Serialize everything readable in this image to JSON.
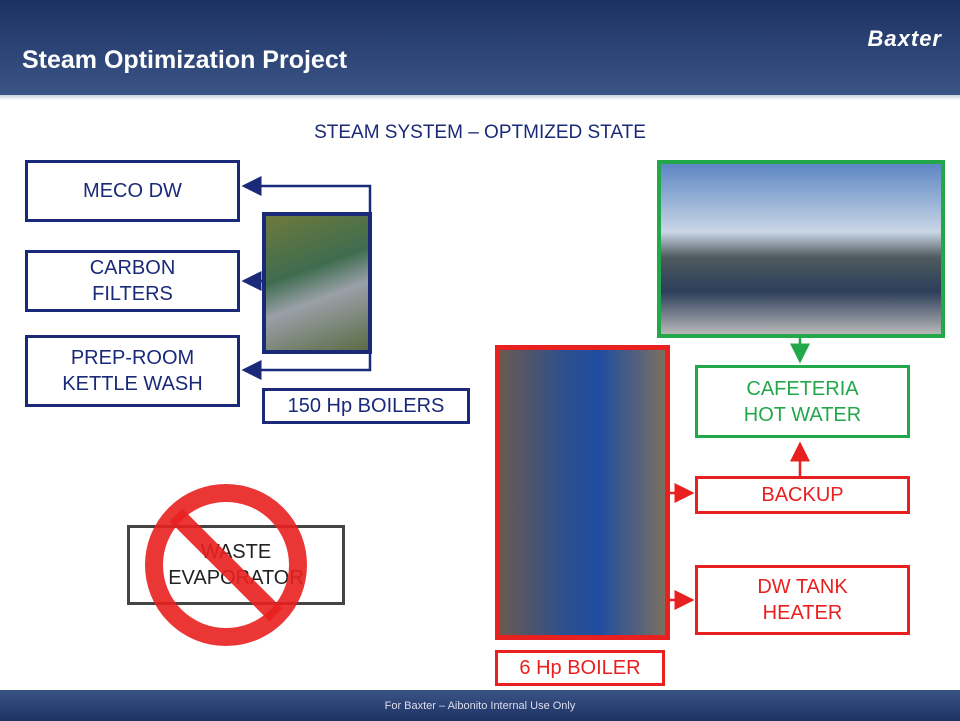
{
  "header": {
    "title": "Steam Optimization Project",
    "logo": "Baxter"
  },
  "subtitle": "STEAM SYSTEM – OPTMIZED STATE",
  "boxes": {
    "meco": "MECO DW",
    "carbon": "CARBON FILTERS",
    "prep": "PREP-ROOM KETTLE WASH",
    "boilers150": "150 Hp BOILERS",
    "waste": "WASTE EVAPORATOR",
    "cafeteria": "CAFETERIA HOT WATER",
    "backup": "BACKUP",
    "dwtank": "DW TANK HEATER",
    "boiler6": "6 Hp BOILER"
  },
  "footer": "For Baxter – Aibonito Internal Use Only"
}
